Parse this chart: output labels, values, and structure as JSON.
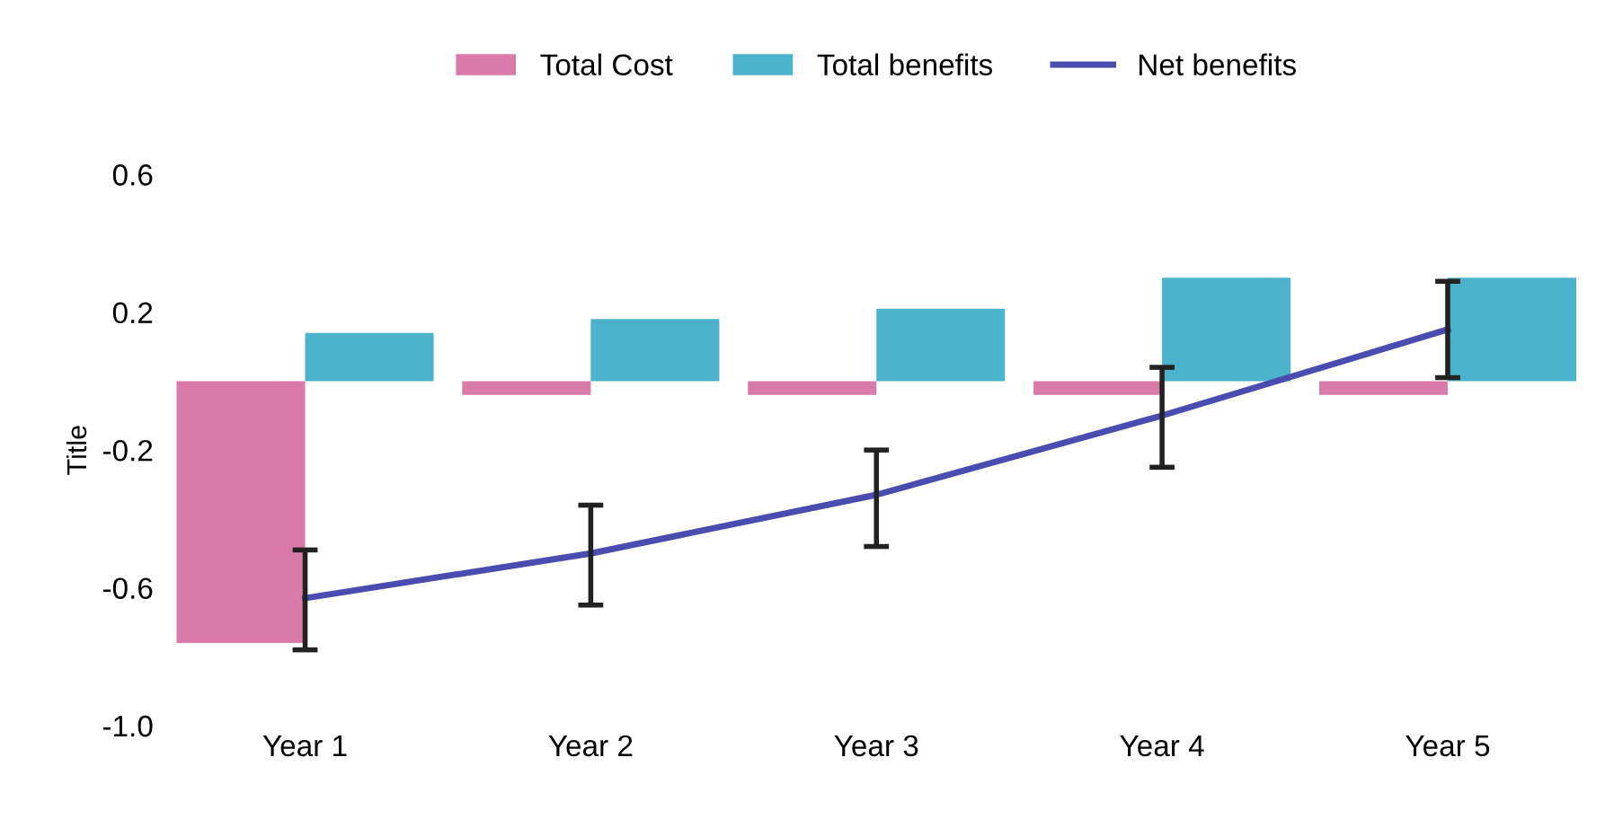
{
  "chart_data": {
    "type": "bar",
    "ylabel": "Title",
    "categories": [
      "Year 1",
      "Year 2",
      "Year 3",
      "Year 4",
      "Year 5"
    ],
    "series": [
      {
        "name": "Total Cost",
        "color": "#d97aa8",
        "values": [
          -0.76,
          -0.04,
          -0.04,
          -0.04,
          -0.04
        ]
      },
      {
        "name": "Total benefits",
        "color": "#4bb3cb",
        "values": [
          0.14,
          0.18,
          0.21,
          0.3,
          0.3
        ]
      },
      {
        "name": "Net benefits",
        "type": "line",
        "color": "#4a4cb0",
        "values": [
          -0.63,
          -0.5,
          -0.33,
          -0.1,
          0.15
        ],
        "errors": [
          [
            -0.78,
            -0.49
          ],
          [
            -0.65,
            -0.36
          ],
          [
            -0.48,
            -0.2
          ],
          [
            -0.25,
            0.04
          ],
          [
            0.01,
            0.29
          ]
        ]
      }
    ],
    "ylim": [
      -1.0,
      0.6
    ],
    "yticks": [
      {
        "value": 0.6,
        "label": "0.6"
      },
      {
        "value": 0.2,
        "label": "0.2"
      },
      {
        "value": -0.2,
        "label": "-0.2"
      },
      {
        "value": -0.6,
        "label": "-0.6"
      },
      {
        "value": -1.0,
        "label": "-1.0"
      }
    ],
    "grid": false,
    "legend": "top",
    "marker": "none",
    "line_style": "solid"
  }
}
